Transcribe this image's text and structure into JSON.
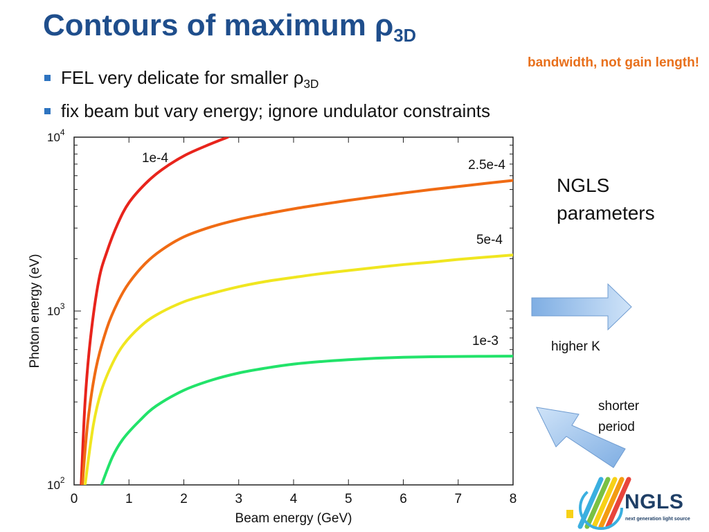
{
  "slide": {
    "title_main": "Contours of maximum ρ",
    "title_sub": "3D",
    "note": "bandwidth, not gain length!",
    "bullets": [
      {
        "text": "FEL very delicate for smaller ρ",
        "sub": "3D"
      },
      {
        "text": "fix beam but vary energy; ignore undulator constraints",
        "sub": ""
      }
    ],
    "side_label": [
      "NGLS",
      "parameters"
    ],
    "arrow_right_label": "higher K",
    "arrow_up_label": [
      "shorter",
      "period"
    ],
    "logo": {
      "name": "NGLS",
      "tagline": "next generation light source",
      "colors": [
        "#3AAFE0",
        "#7AC143",
        "#F7D117",
        "#F39C12",
        "#E8453C"
      ]
    },
    "arrow_color": "#9CC3EC"
  },
  "chart_data": {
    "type": "line",
    "title": "",
    "xlabel": "Beam energy (GeV)",
    "ylabel": "Photon energy (eV)",
    "xlim": [
      0,
      8
    ],
    "ylim": [
      100,
      10000
    ],
    "yscale": "log",
    "x_ticks": [
      "0",
      "1",
      "2",
      "3",
      "4",
      "5",
      "6",
      "7",
      "8"
    ],
    "y_ticks": [
      {
        "base": "10",
        "exp": "2",
        "value": 100
      },
      {
        "base": "10",
        "exp": "3",
        "value": 1000
      },
      {
        "base": "10",
        "exp": "4",
        "value": 10000
      }
    ],
    "grid": false,
    "series": [
      {
        "name": "1e-4",
        "color": "#E8241C",
        "x": [
          0.13,
          0.2,
          0.3,
          0.45,
          0.6,
          0.8,
          1.0,
          1.3,
          1.6,
          2.0,
          2.4,
          2.8
        ],
        "y": [
          100,
          300,
          700,
          1500,
          2200,
          3200,
          4200,
          5400,
          6500,
          7800,
          8900,
          10000
        ]
      },
      {
        "name": "2.5e-4",
        "color": "#F06B14",
        "x": [
          0.15,
          0.25,
          0.4,
          0.6,
          0.8,
          1.0,
          1.3,
          1.6,
          2.0,
          2.5,
          3.0,
          3.5,
          4.0,
          4.5,
          5.0,
          5.5,
          6.0,
          6.5,
          7.0,
          7.5,
          8.0
        ],
        "y": [
          100,
          230,
          470,
          800,
          1130,
          1450,
          1880,
          2250,
          2670,
          3050,
          3360,
          3620,
          3870,
          4100,
          4330,
          4550,
          4770,
          4990,
          5200,
          5420,
          5640
        ]
      },
      {
        "name": "5e-4",
        "color": "#F0E620",
        "x": [
          0.2,
          0.35,
          0.5,
          0.7,
          0.9,
          1.2,
          1.5,
          2.0,
          2.5,
          3.0,
          3.5,
          4.0,
          4.5,
          5.0,
          5.5,
          6.0,
          6.5,
          7.0,
          7.5,
          8.0
        ],
        "y": [
          100,
          220,
          350,
          500,
          640,
          810,
          950,
          1130,
          1260,
          1380,
          1480,
          1560,
          1640,
          1710,
          1780,
          1850,
          1910,
          1980,
          2040,
          2100
        ]
      },
      {
        "name": "1e-3",
        "color": "#22E36A",
        "x": [
          0.5,
          0.7,
          0.9,
          1.2,
          1.5,
          2.0,
          2.5,
          3.0,
          3.5,
          4.0,
          4.5,
          5.0,
          5.5,
          6.0,
          6.5,
          7.0,
          7.5,
          8.0
        ],
        "y": [
          100,
          145,
          185,
          235,
          285,
          350,
          400,
          440,
          470,
          495,
          512,
          525,
          535,
          542,
          546,
          548,
          549,
          550
        ]
      }
    ]
  }
}
